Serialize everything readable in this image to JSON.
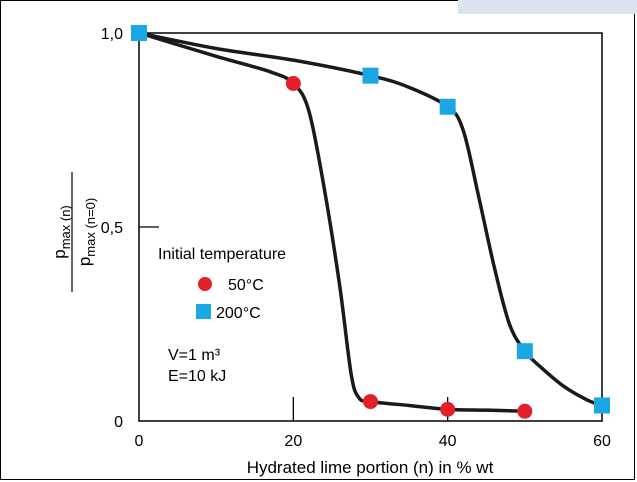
{
  "chart_data": {
    "type": "line",
    "title": "",
    "xlabel": "Hydrated lime portion (n) in % wt",
    "ylabel": {
      "numerator_main": "p",
      "numerator_sub": "max (n)",
      "denominator_main": "p",
      "denominator_sub": "max (n=0)"
    },
    "xlim": [
      0,
      60
    ],
    "ylim": [
      0,
      1.0
    ],
    "x_ticks": [
      0,
      20,
      40,
      60
    ],
    "x_tick_labels": [
      "0",
      "20",
      "40",
      "60"
    ],
    "y_ticks": [
      0,
      0.5,
      1.0
    ],
    "y_tick_labels": [
      "0",
      "0,5",
      "1,0"
    ],
    "grid": false,
    "legend": {
      "title": "Initial temperature",
      "placement": "middle-left"
    },
    "annotations": [
      "V=1 m³",
      "E=10 kJ"
    ],
    "series": [
      {
        "name": "50°C",
        "marker": "circle",
        "color": "#e3202a",
        "points": [
          [
            0,
            1.0
          ],
          [
            20,
            0.87
          ],
          [
            30,
            0.05
          ],
          [
            40,
            0.03
          ],
          [
            50,
            0.025
          ]
        ],
        "curve": [
          [
            0,
            1.0
          ],
          [
            10,
            0.94
          ],
          [
            17,
            0.9
          ],
          [
            20,
            0.87
          ],
          [
            22,
            0.8
          ],
          [
            24,
            0.6
          ],
          [
            26,
            0.35
          ],
          [
            27.5,
            0.12
          ],
          [
            28.5,
            0.06
          ],
          [
            30,
            0.05
          ],
          [
            35,
            0.04
          ],
          [
            40,
            0.03
          ],
          [
            45,
            0.028
          ],
          [
            50,
            0.025
          ]
        ]
      },
      {
        "name": "200°C",
        "marker": "square",
        "color": "#1aa7e4",
        "points": [
          [
            0,
            1.0
          ],
          [
            30,
            0.89
          ],
          [
            40,
            0.81
          ],
          [
            50,
            0.18
          ],
          [
            60,
            0.04
          ]
        ],
        "curve": [
          [
            0,
            1.0
          ],
          [
            10,
            0.96
          ],
          [
            20,
            0.93
          ],
          [
            30,
            0.89
          ],
          [
            35,
            0.86
          ],
          [
            40,
            0.81
          ],
          [
            42,
            0.75
          ],
          [
            44,
            0.58
          ],
          [
            46,
            0.4
          ],
          [
            48,
            0.25
          ],
          [
            50,
            0.18
          ],
          [
            52,
            0.14
          ],
          [
            55,
            0.09
          ],
          [
            58,
            0.055
          ],
          [
            60,
            0.04
          ]
        ]
      }
    ]
  }
}
